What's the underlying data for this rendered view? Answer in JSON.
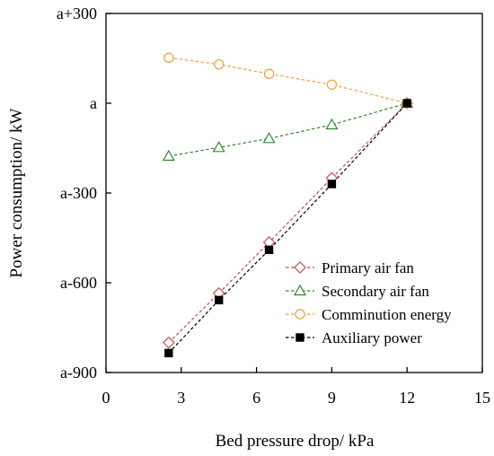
{
  "chart_data": {
    "type": "line",
    "xlabel": "Bed pressure drop/ kPa",
    "ylabel": "Power consumption/ kW",
    "xlim": [
      0,
      15
    ],
    "ylim": [
      -900,
      300
    ],
    "xticks": [
      0,
      3,
      6,
      9,
      12,
      15
    ],
    "xtick_labels": [
      "0",
      "3",
      "6",
      "9",
      "12",
      "15"
    ],
    "yticks": [
      -900,
      -600,
      -300,
      0,
      300
    ],
    "ytick_labels": [
      "a-900",
      "a-600",
      "a-300",
      "a",
      "a+300"
    ],
    "grid": false,
    "legend_position": "bottom-right",
    "series": [
      {
        "name": "Primary air fan",
        "marker": "diamond",
        "color": "#c0504d",
        "x": [
          2.5,
          4.5,
          6.5,
          9,
          12
        ],
        "y": [
          -800,
          -635,
          -465,
          -250,
          0
        ]
      },
      {
        "name": "Secondary air fan",
        "marker": "triangle",
        "color": "#2e8b2e",
        "x": [
          2.5,
          4.5,
          6.5,
          9,
          12
        ],
        "y": [
          -177,
          -148,
          -118,
          -72,
          0
        ]
      },
      {
        "name": "Comminution energy",
        "marker": "circle",
        "color": "#f0a040",
        "x": [
          2.5,
          4.5,
          6.5,
          9,
          12
        ],
        "y": [
          152,
          130,
          98,
          62,
          0
        ]
      },
      {
        "name": "Auxiliary power",
        "marker": "square-filled",
        "color": "#000000",
        "x": [
          2.5,
          4.5,
          6.5,
          9,
          12
        ],
        "y": [
          -835,
          -658,
          -490,
          -270,
          0
        ]
      }
    ]
  }
}
